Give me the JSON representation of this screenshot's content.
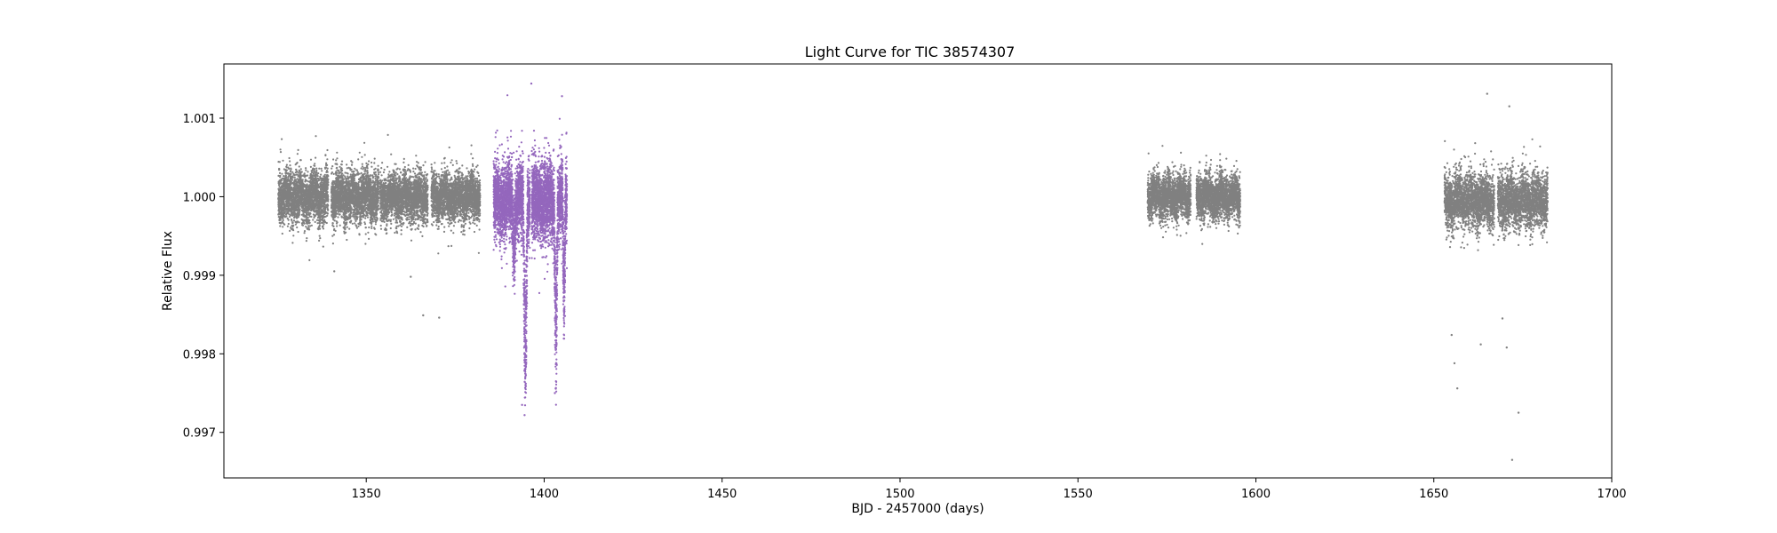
{
  "chart_data": {
    "type": "scatter",
    "title": "Light Curve for TIC 38574307",
    "xlabel": "BJD - 2457000 (days)",
    "ylabel": "Relative Flux",
    "xlim": [
      1310,
      1700
    ],
    "ylim": [
      0.99642,
      1.00169
    ],
    "xticks": [
      1350,
      1400,
      1450,
      1500,
      1550,
      1600,
      1650,
      1700
    ],
    "xtick_labels": [
      "1350",
      "1400",
      "1450",
      "1500",
      "1550",
      "1600",
      "1650",
      "1700"
    ],
    "yticks": [
      0.997,
      0.998,
      0.999,
      1.0,
      1.001
    ],
    "ytick_labels": [
      "0.997",
      "0.998",
      "0.999",
      "1.000",
      "1.001"
    ],
    "grid": false,
    "legend": "none",
    "series": [
      {
        "color": "#808080",
        "segments": [
          {
            "x_start": 1325.3,
            "x_end": 1339.3,
            "center": 1.0,
            "noise": 0.00017,
            "points": 2600
          },
          {
            "x_start": 1340.2,
            "x_end": 1353.5,
            "center": 1.0,
            "noise": 0.00017,
            "points": 2500
          },
          {
            "x_start": 1353.9,
            "x_end": 1367.3,
            "center": 1.0,
            "noise": 0.00016,
            "points": 2500
          },
          {
            "x_start": 1368.3,
            "x_end": 1382.0,
            "center": 1.0,
            "noise": 0.00016,
            "points": 2500
          },
          {
            "x_start": 1569.6,
            "x_end": 1581.7,
            "center": 1.0,
            "noise": 0.00015,
            "points": 2300
          },
          {
            "x_start": 1583.3,
            "x_end": 1595.6,
            "center": 1.0,
            "noise": 0.00015,
            "points": 2300
          },
          {
            "x_start": 1653.0,
            "x_end": 1667.0,
            "center": 0.99995,
            "noise": 0.00018,
            "points": 2400
          },
          {
            "x_start": 1668.0,
            "x_end": 1682.0,
            "center": 0.99995,
            "noise": 0.00018,
            "points": 2400
          }
        ],
        "outliers": [
          {
            "x": 1366.0,
            "y": 0.99849
          },
          {
            "x": 1370.5,
            "y": 0.99846
          },
          {
            "x": 1341.0,
            "y": 0.99905
          },
          {
            "x": 1362.5,
            "y": 0.99898
          },
          {
            "x": 1655.0,
            "y": 0.99824
          },
          {
            "x": 1655.8,
            "y": 0.99788
          },
          {
            "x": 1656.6,
            "y": 0.99756
          },
          {
            "x": 1663.2,
            "y": 0.99812
          },
          {
            "x": 1665.0,
            "y": 1.00131
          },
          {
            "x": 1669.3,
            "y": 0.99845
          },
          {
            "x": 1670.5,
            "y": 0.99808
          },
          {
            "x": 1672.0,
            "y": 0.99665
          },
          {
            "x": 1673.8,
            "y": 0.99725
          },
          {
            "x": 1671.2,
            "y": 1.00115
          }
        ]
      },
      {
        "color": "#9467bd",
        "segments": [
          {
            "x_start": 1385.8,
            "x_end": 1396.0,
            "center": 0.99995,
            "noise": 0.00025,
            "points": 2800
          },
          {
            "x_start": 1396.5,
            "x_end": 1406.4,
            "center": 0.99995,
            "noise": 0.00026,
            "points": 2800
          }
        ],
        "dips": [
          {
            "x": 1394.7,
            "depth": 0.0025,
            "width": 0.6
          },
          {
            "x": 1403.3,
            "depth": 0.0022,
            "width": 0.5
          },
          {
            "x": 1405.6,
            "depth": 0.0016,
            "width": 0.4
          },
          {
            "x": 1391.5,
            "depth": 0.0008,
            "width": 0.5
          }
        ],
        "outliers": [
          {
            "x": 1396.4,
            "y": 1.00144
          },
          {
            "x": 1405.0,
            "y": 1.00128
          },
          {
            "x": 1394.5,
            "y": 0.99722
          },
          {
            "x": 1393.8,
            "y": 0.99735
          },
          {
            "x": 1403.0,
            "y": 0.9975
          }
        ]
      }
    ]
  }
}
